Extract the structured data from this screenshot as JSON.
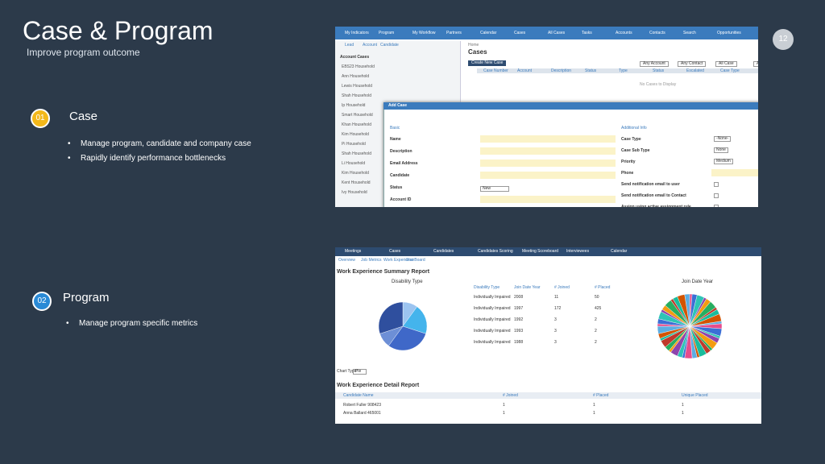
{
  "header": {
    "title": "Case & Program",
    "subtitle": "Improve program outcome",
    "page_number": "12"
  },
  "sections": [
    {
      "number": "01",
      "title": "Case",
      "bullets": [
        "Manage program, candidate and company case",
        "Rapidly identify performance bottlenecks"
      ]
    },
    {
      "number": "02",
      "title": "Program",
      "bullets": [
        "Manage program specific metrics"
      ]
    }
  ],
  "screenshot1": {
    "nav": [
      "My Indicators",
      "Program",
      "My Workflow",
      "Partners",
      "Calendar",
      "Cases",
      "All Cases",
      "Tasks",
      "Accounts",
      "Contacts",
      "Search",
      "Opportunities"
    ],
    "subtabs": [
      "Lead",
      "Account",
      "Candidate"
    ],
    "sidebar_title": "Account Cases",
    "sidebar": [
      "EBS23 Household",
      "Ann Household",
      "Lewis Household",
      "Shah Household",
      "Ip Household",
      "Smart Household",
      "Khan Household",
      "Kim Household",
      "Pi Household",
      "Shah Household",
      "Li Household",
      "Kim Household",
      "Kent Household",
      "Ivy Household"
    ],
    "crumb": "Home",
    "list_title": "Cases",
    "create_button": "Create New Case",
    "filters": [
      "Any Account",
      "Any Contact",
      "All Case",
      "Any Status"
    ],
    "columns": [
      "Case Number",
      "Account",
      "Description",
      "Status",
      "Type",
      "Status",
      "Escalated",
      "Case Type"
    ],
    "empty": "No Cases to Display",
    "modal_title": "Add Case",
    "basic_title": "Basic",
    "basic_fields": [
      "Name",
      "Description",
      "Email Address",
      "Candidate",
      "Status",
      "Account ID"
    ],
    "status_value": "New",
    "extra_title": "Additional Info",
    "extra_fields": [
      "Case Type",
      "Case Sub Type",
      "Priority",
      "Phone",
      "Send notification email to user",
      "Send notification email to Contact",
      "Assign using active assignment rule"
    ],
    "extra_values": [
      "-None-",
      "None",
      "Medium"
    ]
  },
  "screenshot2": {
    "nav": [
      "Meetings",
      "Cases",
      "Candidates",
      "Candidates Scoring",
      "Meeting Scoreboard",
      "Interviewees",
      "Calendar"
    ],
    "subtabs": [
      "Overview",
      "Job Metrics",
      "Work Experience",
      "Stat Board"
    ],
    "summary_title": "Work Experience Summary Report",
    "pie1_title": "Disability Type",
    "pie2_title": "Join Date Year",
    "table_columns": [
      "Disability Type",
      "Join Date Year",
      "# Joined",
      "# Placed"
    ],
    "table_rows": [
      [
        "Individually Impaired",
        "2008",
        "11",
        "50"
      ],
      [
        "Individually Impaired",
        "1997",
        "172",
        "425"
      ],
      [
        "Individually Impaired",
        "1992",
        "3",
        "2"
      ],
      [
        "Individually Impaired",
        "1993",
        "3",
        "2"
      ],
      [
        "Individually Impaired",
        "1988",
        "3",
        "2"
      ]
    ],
    "chart_type_label": "Chart Type:",
    "chart_type_value": "Pie",
    "detail_title": "Work Experience Detail Report",
    "detail_columns": [
      "Candidate Name",
      "# Joined",
      "# Placed",
      "Unique Placed"
    ],
    "detail_rows": [
      [
        "Robert Fuller 908423",
        "1",
        "1",
        "1"
      ],
      [
        "Anna Ballard 465001",
        "1",
        "1",
        "1"
      ]
    ]
  }
}
